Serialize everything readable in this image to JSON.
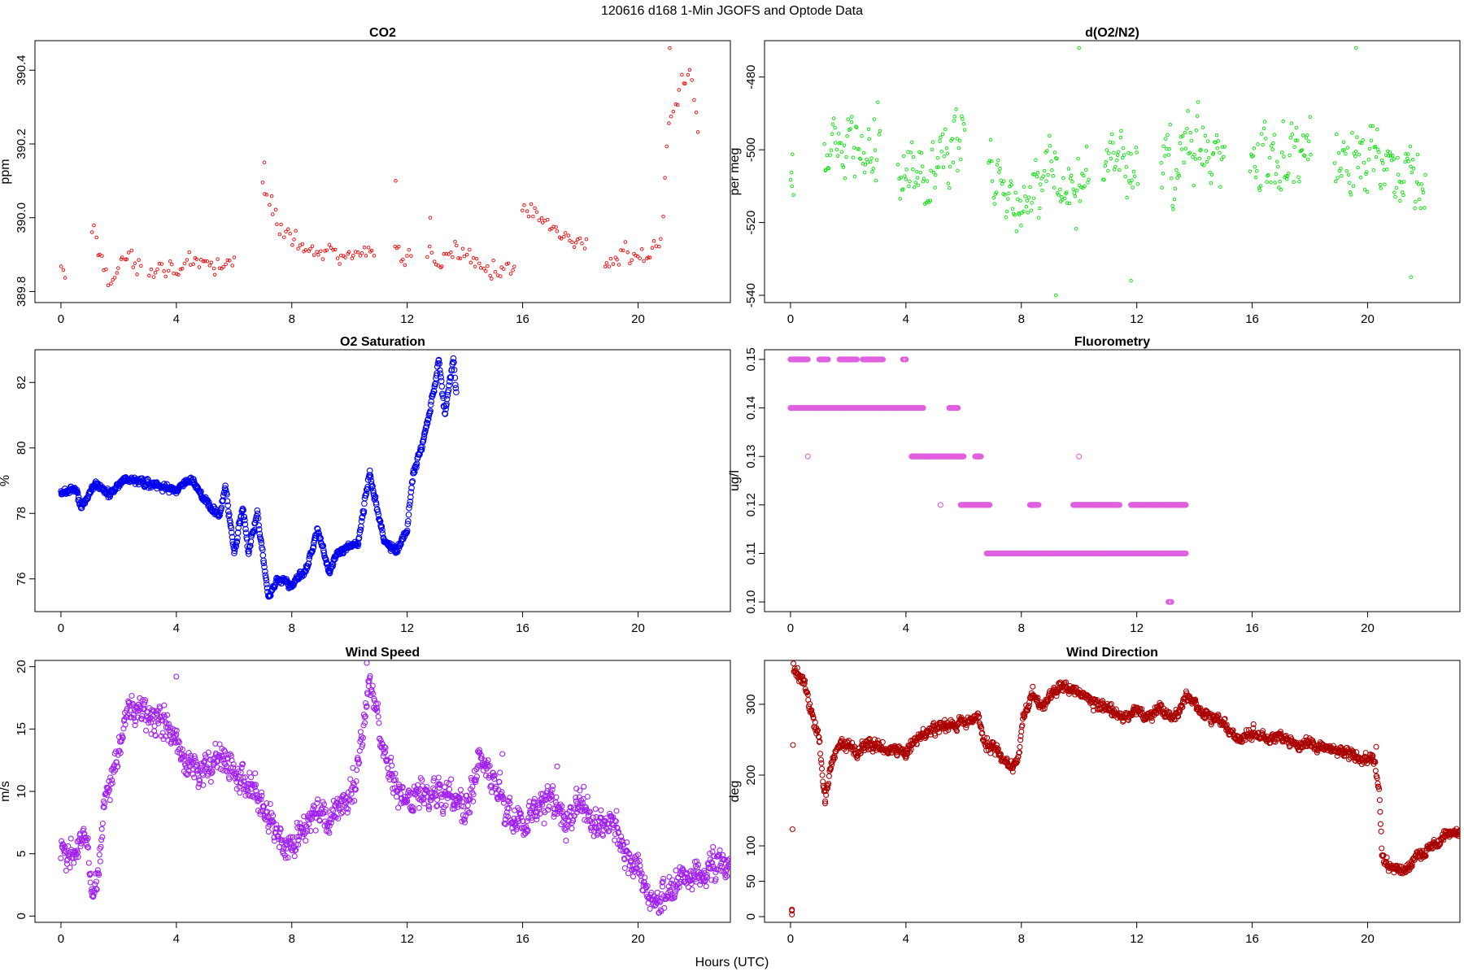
{
  "figure": {
    "title": "120616   d168   1-Min  JGOFS and Optode Data",
    "xlabel": "Hours (UTC)"
  },
  "chart_data": [
    {
      "id": "co2",
      "type": "scatter",
      "title": "CO2",
      "ylabel": "ppm",
      "xlabel": "",
      "xlim": [
        -0.9,
        23.2
      ],
      "ylim": [
        389.77,
        390.48
      ],
      "xticks": [
        0,
        4,
        8,
        12,
        16,
        20
      ],
      "yticks": [
        389.8,
        390.0,
        390.2,
        390.4
      ],
      "ytick_labels": [
        "389.8",
        "390.0",
        "390.2",
        "390.4"
      ],
      "color": "#ee0000",
      "marker_radius": 1.8,
      "points_per_hour": 14,
      "profile": [
        [
          0,
          389.85
        ],
        [
          0.1,
          389.85
        ],
        [
          1.1,
          389.97
        ],
        [
          1.3,
          389.91
        ],
        [
          1.7,
          389.84
        ],
        [
          2.2,
          389.88
        ],
        [
          2.6,
          389.88
        ],
        [
          3,
          389.86
        ],
        [
          3.8,
          389.87
        ],
        [
          4.5,
          389.86
        ],
        [
          5.5,
          389.87
        ],
        [
          6,
          389.88
        ],
        [
          7,
          390.08
        ],
        [
          7.5,
          389.99
        ],
        [
          8.3,
          389.93
        ],
        [
          9,
          389.91
        ],
        [
          10,
          389.9
        ],
        [
          10.8,
          389.89
        ],
        [
          11.5,
          389.91
        ],
        [
          12.3,
          389.9
        ],
        [
          13,
          389.88
        ],
        [
          14,
          389.91
        ],
        [
          15,
          389.86
        ],
        [
          15.7,
          389.84
        ],
        [
          16,
          390.02
        ],
        [
          17,
          389.97
        ],
        [
          18,
          389.93
        ],
        [
          18.2,
          389.92
        ],
        [
          18.8,
          389.87
        ],
        [
          19.5,
          389.89
        ],
        [
          20.3,
          389.9
        ],
        [
          20.8,
          389.94
        ],
        [
          21,
          390.2
        ],
        [
          21.4,
          390.36
        ],
        [
          21.8,
          390.4
        ],
        [
          22.1,
          390.2
        ]
      ],
      "noise": 0.022,
      "gaps": [
        [
          0.15,
          1.05
        ],
        [
          2.8,
          3.05
        ],
        [
          6.05,
          6.95
        ],
        [
          10.9,
          11.5
        ],
        [
          12.15,
          12.65
        ],
        [
          15.75,
          15.95
        ],
        [
          18.25,
          18.8
        ]
      ],
      "extra_points": [
        [
          11.6,
          390.1
        ],
        [
          7.05,
          390.15
        ],
        [
          12.8,
          390.0
        ],
        [
          21.1,
          390.46
        ]
      ]
    },
    {
      "id": "o2n2",
      "type": "scatter",
      "title": "d(O2/N2)",
      "ylabel": "per meg",
      "xlabel": "",
      "xlim": [
        -0.9,
        23.2
      ],
      "ylim": [
        -542,
        -470
      ],
      "xticks": [
        0,
        4,
        8,
        12,
        16,
        20
      ],
      "yticks": [
        -480,
        -500,
        -520,
        -540
      ],
      "ytick_labels": [
        "-480",
        "-500",
        "-520",
        "-540"
      ],
      "color": "#00e000",
      "marker_radius": 1.8,
      "points_per_hour": 30,
      "profile": [
        [
          0,
          -510
        ],
        [
          1,
          -503
        ],
        [
          2,
          -498
        ],
        [
          3,
          -497
        ],
        [
          4,
          -503
        ],
        [
          5,
          -505
        ],
        [
          6,
          -500
        ],
        [
          7,
          -508
        ],
        [
          8,
          -514
        ],
        [
          9,
          -505
        ],
        [
          10,
          -512
        ],
        [
          11,
          -504
        ],
        [
          12,
          -506
        ],
        [
          13,
          -503
        ],
        [
          14,
          -501
        ],
        [
          15,
          -501
        ],
        [
          16,
          -504
        ],
        [
          17,
          -503
        ],
        [
          18,
          -500
        ],
        [
          19,
          -502
        ],
        [
          20,
          -501
        ],
        [
          21,
          -505
        ],
        [
          22,
          -508
        ]
      ],
      "noise": 7,
      "gaps": [
        [
          0.1,
          1.15
        ],
        [
          3.1,
          3.7
        ],
        [
          6.05,
          6.85
        ],
        [
          10.35,
          10.8
        ],
        [
          12.05,
          12.8
        ],
        [
          15.05,
          15.9
        ],
        [
          18.05,
          18.85
        ]
      ],
      "extra_points": [
        [
          0.05,
          -510
        ],
        [
          9.2,
          -540
        ],
        [
          10,
          -472
        ],
        [
          19.6,
          -472
        ],
        [
          11.8,
          -536
        ],
        [
          21.5,
          -535
        ]
      ]
    },
    {
      "id": "o2sat",
      "type": "scatter",
      "title": "O2 Saturation",
      "ylabel": "%",
      "xlabel": "",
      "xlim": [
        -0.9,
        23.2
      ],
      "ylim": [
        75.0,
        83.0
      ],
      "xticks": [
        0,
        4,
        8,
        12,
        16,
        20
      ],
      "yticks": [
        76,
        78,
        80,
        82
      ],
      "ytick_labels": [
        "76",
        "78",
        "80",
        "82"
      ],
      "color": "#0000ee",
      "marker_radius": 3.3,
      "points_per_hour": 60,
      "profile": [
        [
          0,
          78.6
        ],
        [
          0.5,
          78.8
        ],
        [
          0.7,
          78.2
        ],
        [
          1.2,
          78.9
        ],
        [
          1.7,
          78.6
        ],
        [
          2.1,
          79.0
        ],
        [
          2.5,
          79.0
        ],
        [
          3,
          78.9
        ],
        [
          4,
          78.7
        ],
        [
          4.5,
          79.1
        ],
        [
          5,
          78.4
        ],
        [
          5.5,
          77.9
        ],
        [
          5.7,
          78.8
        ],
        [
          6.0,
          76.8
        ],
        [
          6.3,
          78.2
        ],
        [
          6.5,
          76.8
        ],
        [
          6.8,
          78.0
        ],
        [
          7.2,
          75.4
        ],
        [
          7.5,
          76.0
        ],
        [
          8,
          75.8
        ],
        [
          8.5,
          76.3
        ],
        [
          8.9,
          77.5
        ],
        [
          9.3,
          76.2
        ],
        [
          9.6,
          76.8
        ],
        [
          10.3,
          77.1
        ],
        [
          10.7,
          79.2
        ],
        [
          11.2,
          77.2
        ],
        [
          11.6,
          76.8
        ],
        [
          12,
          77.5
        ],
        [
          12.2,
          79.2
        ],
        [
          12.5,
          80.0
        ],
        [
          12.8,
          81.2
        ],
        [
          13.1,
          82.7
        ],
        [
          13.3,
          81.0
        ],
        [
          13.6,
          82.7
        ],
        [
          13.7,
          81.7
        ]
      ],
      "noise": 0.08,
      "gaps": [],
      "extra_points": []
    },
    {
      "id": "fluoro",
      "type": "scatter",
      "title": "Fluorometry",
      "ylabel": "ug/l",
      "xlabel": "",
      "xlim": [
        -0.9,
        23.2
      ],
      "ylim": [
        0.098,
        0.152
      ],
      "xticks": [
        0,
        4,
        8,
        12,
        16,
        20
      ],
      "yticks": [
        0.1,
        0.11,
        0.12,
        0.13,
        0.14,
        0.15
      ],
      "ytick_labels": [
        "0.10",
        "0.11",
        "0.12",
        "0.13",
        "0.14",
        "0.15"
      ],
      "color": "#e060e0",
      "marker_radius": 3.0,
      "levels": [
        {
          "value": 0.15,
          "segments": [
            [
              0.0,
              0.6
            ],
            [
              1.0,
              1.3
            ],
            [
              1.7,
              2.3
            ],
            [
              2.5,
              3.2
            ],
            [
              3.9,
              4.0
            ]
          ]
        },
        {
          "value": 0.14,
          "segments": [
            [
              0.0,
              4.6
            ],
            [
              5.5,
              5.8
            ]
          ]
        },
        {
          "value": 0.13,
          "segments": [
            [
              4.2,
              6.0
            ],
            [
              6.4,
              6.6
            ]
          ]
        },
        {
          "value": 0.12,
          "segments": [
            [
              5.9,
              6.9
            ],
            [
              8.3,
              8.6
            ],
            [
              9.8,
              11.4
            ],
            [
              11.8,
              13.7
            ]
          ]
        },
        {
          "value": 0.11,
          "segments": [
            [
              6.8,
              13.7
            ]
          ]
        },
        {
          "value": 0.1,
          "segments": [
            [
              13.1,
              13.2
            ]
          ]
        }
      ],
      "extra_points": [
        [
          0.6,
          0.13
        ],
        [
          10.0,
          0.13
        ],
        [
          5.2,
          0.12
        ],
        [
          4.0,
          0.15
        ]
      ]
    },
    {
      "id": "windspeed",
      "type": "scatter",
      "title": "Wind Speed",
      "ylabel": "m/s",
      "xlabel": "",
      "xlim": [
        -0.9,
        23.2
      ],
      "ylim": [
        -0.5,
        20.5
      ],
      "xticks": [
        0,
        4,
        8,
        12,
        16,
        20
      ],
      "yticks": [
        0,
        5,
        10,
        15,
        20
      ],
      "ytick_labels": [
        "0",
        "5",
        "10",
        "15",
        "20"
      ],
      "color": "#a020f0",
      "marker_radius": 3.0,
      "points_per_hour": 60,
      "profile": [
        [
          0,
          4.8
        ],
        [
          0.5,
          5.2
        ],
        [
          0.9,
          6.5
        ],
        [
          1.1,
          1.8
        ],
        [
          1.3,
          3.0
        ],
        [
          1.5,
          10.0
        ],
        [
          1.8,
          11.0
        ],
        [
          2.2,
          15.5
        ],
        [
          2.6,
          17.0
        ],
        [
          3,
          16.0
        ],
        [
          3.5,
          15.5
        ],
        [
          4,
          14.0
        ],
        [
          4.5,
          12.0
        ],
        [
          5,
          11.5
        ],
        [
          5.5,
          13.0
        ],
        [
          6,
          11.5
        ],
        [
          6.5,
          10.5
        ],
        [
          7,
          9.0
        ],
        [
          7.5,
          6.5
        ],
        [
          8,
          5.5
        ],
        [
          8.5,
          7.5
        ],
        [
          9,
          8.5
        ],
        [
          9.3,
          8.0
        ],
        [
          10,
          9.5
        ],
        [
          10.3,
          12.0
        ],
        [
          10.7,
          19.0
        ],
        [
          11,
          15.0
        ],
        [
          11.5,
          10.5
        ],
        [
          12,
          9.5
        ],
        [
          12.5,
          9.5
        ],
        [
          13,
          10.0
        ],
        [
          13.5,
          9.5
        ],
        [
          14,
          8.5
        ],
        [
          14.5,
          12.5
        ],
        [
          15,
          11.0
        ],
        [
          15.5,
          8.0
        ],
        [
          16,
          7.5
        ],
        [
          16.5,
          9.0
        ],
        [
          17,
          9.5
        ],
        [
          17.5,
          7.5
        ],
        [
          18,
          9.5
        ],
        [
          18.5,
          7.0
        ],
        [
          19,
          7.5
        ],
        [
          19.5,
          5.5
        ],
        [
          20,
          4.0
        ],
        [
          20.5,
          1.2
        ],
        [
          21,
          2.0
        ],
        [
          21.5,
          3.5
        ],
        [
          22,
          3.0
        ],
        [
          22.5,
          3.8
        ],
        [
          23.2,
          4.2
        ]
      ],
      "noise": 0.9,
      "gaps": [],
      "extra_points": [
        [
          4.0,
          19.2
        ],
        [
          10.6,
          20.3
        ],
        [
          15.3,
          13.0
        ],
        [
          17.2,
          12.0
        ]
      ]
    },
    {
      "id": "winddir",
      "type": "scatter",
      "title": "Wind Direction",
      "ylabel": "deg",
      "xlabel": "",
      "xlim": [
        -0.9,
        23.2
      ],
      "ylim": [
        -8,
        362
      ],
      "xticks": [
        0,
        4,
        8,
        12,
        16,
        20
      ],
      "yticks": [
        0,
        50,
        100,
        200,
        300
      ],
      "ytick_labels": [
        "0",
        "50",
        "100",
        "200",
        "300"
      ],
      "color": "#aa0000",
      "marker_radius": 3.0,
      "points_per_hour": 60,
      "profile": [
        [
          0.05,
          5
        ],
        [
          0.1,
          350
        ],
        [
          0.5,
          330
        ],
        [
          0.8,
          275
        ],
        [
          1.0,
          250
        ],
        [
          1.1,
          200
        ],
        [
          1.2,
          170
        ],
        [
          1.4,
          210
        ],
        [
          1.6,
          240
        ],
        [
          2,
          245
        ],
        [
          2.3,
          228
        ],
        [
          2.6,
          245
        ],
        [
          3,
          240
        ],
        [
          3.5,
          238
        ],
        [
          4,
          232
        ],
        [
          4.5,
          255
        ],
        [
          5,
          265
        ],
        [
          5.5,
          270
        ],
        [
          6,
          272
        ],
        [
          6.5,
          283
        ],
        [
          6.7,
          245
        ],
        [
          7.2,
          235
        ],
        [
          7.6,
          210
        ],
        [
          7.9,
          225
        ],
        [
          8.1,
          285
        ],
        [
          8.4,
          315
        ],
        [
          8.7,
          295
        ],
        [
          9.2,
          322
        ],
        [
          9.8,
          325
        ],
        [
          10.2,
          310
        ],
        [
          10.6,
          300
        ],
        [
          11,
          295
        ],
        [
          11.5,
          280
        ],
        [
          12,
          292
        ],
        [
          12.4,
          280
        ],
        [
          12.8,
          295
        ],
        [
          13.3,
          280
        ],
        [
          13.8,
          312
        ],
        [
          14.2,
          290
        ],
        [
          14.8,
          280
        ],
        [
          15.2,
          265
        ],
        [
          15.5,
          248
        ],
        [
          16,
          262
        ],
        [
          16.5,
          250
        ],
        [
          17,
          258
        ],
        [
          17.5,
          240
        ],
        [
          18,
          245
        ],
        [
          18.5,
          238
        ],
        [
          19,
          232
        ],
        [
          19.5,
          230
        ],
        [
          19.9,
          220
        ],
        [
          20.2,
          225
        ],
        [
          20.4,
          180
        ],
        [
          20.5,
          80
        ],
        [
          20.8,
          70
        ],
        [
          21.3,
          65
        ],
        [
          21.7,
          85
        ],
        [
          22.2,
          100
        ],
        [
          22.8,
          115
        ],
        [
          23.2,
          122
        ]
      ],
      "noise": 6,
      "gaps": [],
      "extra_points": [
        [
          0.05,
          10
        ],
        [
          0.05,
          3
        ],
        [
          20.3,
          240
        ],
        [
          1.2,
          160
        ]
      ]
    }
  ]
}
